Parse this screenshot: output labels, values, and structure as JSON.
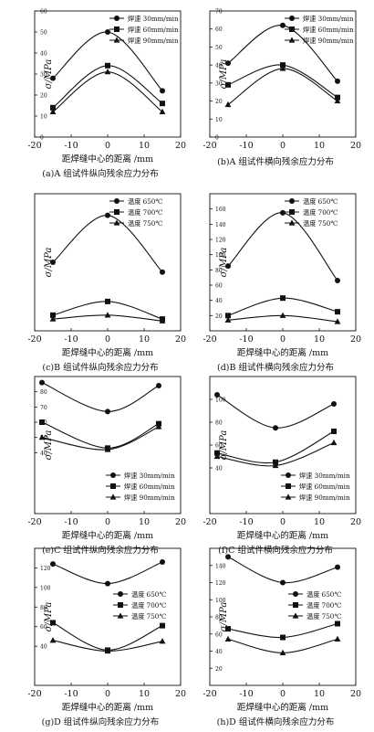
{
  "figure": {
    "panels_layout": "4 rows x 2 columns",
    "line_color": "#111111",
    "background": "#ffffff"
  },
  "chart_data": [
    {
      "id": "a",
      "type": "line",
      "caption": "(a)A 组试件纵向残余应力分布",
      "xlabel": "距焊缝中心的距离 /mm",
      "ylabel": "σ/MPa",
      "xlim": [
        -20,
        20
      ],
      "xticks": [
        -20,
        -10,
        0,
        10,
        20
      ],
      "ylim": [
        0,
        60
      ],
      "yticks": [
        0,
        10,
        20,
        30,
        40,
        50,
        60
      ],
      "grid": false,
      "legend_position": "top-right",
      "x": [
        -15,
        0,
        15
      ],
      "series": [
        {
          "name": "焊速 30mm/min",
          "marker": "circle",
          "values": [
            28,
            50,
            22
          ]
        },
        {
          "name": "焊速 60mm/min",
          "marker": "square",
          "values": [
            14,
            34,
            16
          ]
        },
        {
          "name": "焊速 90mm/min",
          "marker": "triangle",
          "values": [
            12,
            31,
            12
          ]
        }
      ]
    },
    {
      "id": "b",
      "type": "line",
      "caption": "(b)A 组试件横向残余应力分布",
      "xlabel": "",
      "ylabel": "σ/MPa",
      "xlim": [
        -20,
        20
      ],
      "xticks": [
        -20,
        -10,
        0,
        10,
        20
      ],
      "ylim": [
        0,
        70
      ],
      "yticks": [
        0,
        10,
        20,
        30,
        40,
        50,
        60,
        70
      ],
      "grid": false,
      "legend_position": "top-right",
      "x": [
        -15,
        0,
        15
      ],
      "series": [
        {
          "name": "焊速 30mm/min",
          "marker": "circle",
          "values": [
            41,
            62,
            31
          ]
        },
        {
          "name": "焊速 60mm/min",
          "marker": "square",
          "values": [
            29,
            40,
            22
          ]
        },
        {
          "name": "焊速 90mm/min",
          "marker": "triangle",
          "values": [
            18,
            38,
            20
          ]
        }
      ]
    },
    {
      "id": "c",
      "type": "line",
      "caption": "(c)B 组试件纵向残余应力分布",
      "xlabel": "距焊缝中心的距离 /mm",
      "ylabel": "σ/MPa",
      "xlim": [
        -20,
        20
      ],
      "xticks": [
        -20,
        -10,
        0,
        10,
        20
      ],
      "ylim": [
        0,
        140
      ],
      "yticks": [],
      "grid": false,
      "legend_position": "top-right",
      "x": [
        -15,
        0,
        15
      ],
      "series": [
        {
          "name": "温度 650℃",
          "marker": "circle",
          "values": [
            70,
            118,
            60
          ]
        },
        {
          "name": "温度 700℃",
          "marker": "square",
          "values": [
            16,
            30,
            12
          ]
        },
        {
          "name": "温度 750℃",
          "marker": "triangle",
          "values": [
            12,
            16,
            10
          ]
        }
      ]
    },
    {
      "id": "d",
      "type": "line",
      "caption": "(d)B 组试件横向残余应力分布",
      "xlabel": "距焊缝中心的距离 /mm",
      "ylabel": "σ/MPa",
      "xlim": [
        -20,
        20
      ],
      "xticks": [
        -20,
        -10,
        0,
        10,
        20
      ],
      "ylim": [
        0,
        180
      ],
      "yticks": [
        20,
        40,
        60,
        80,
        100,
        120,
        140,
        160
      ],
      "grid": false,
      "legend_position": "top-right",
      "x": [
        -15,
        0,
        15
      ],
      "series": [
        {
          "name": "温度 650℃",
          "marker": "circle",
          "values": [
            85,
            155,
            66
          ]
        },
        {
          "name": "温度 700℃",
          "marker": "square",
          "values": [
            20,
            43,
            25
          ]
        },
        {
          "name": "温度 750℃",
          "marker": "triangle",
          "values": [
            14,
            20,
            12
          ]
        }
      ]
    },
    {
      "id": "e",
      "type": "line",
      "caption": "(e)C 组试件纵向残余应力分布",
      "xlabel": "距焊缝中心的距离 /mm",
      "ylabel": "σ/MPa",
      "xlim": [
        -20,
        20
      ],
      "xticks": [
        -20,
        -10,
        0,
        10,
        20
      ],
      "ylim": [
        0,
        90
      ],
      "yticks": [
        40,
        50,
        60,
        70,
        80
      ],
      "grid": false,
      "legend_position": "bottom-right",
      "x": [
        -18,
        0,
        14
      ],
      "series": [
        {
          "name": "焊速 30mm/min",
          "marker": "circle",
          "values": [
            86,
            67,
            84
          ]
        },
        {
          "name": "焊速 60mm/min",
          "marker": "square",
          "values": [
            60,
            43,
            59
          ]
        },
        {
          "name": "焊速 90mm/min",
          "marker": "triangle",
          "values": [
            50,
            42,
            57
          ]
        }
      ]
    },
    {
      "id": "f",
      "type": "line",
      "caption": "(f)C 组试件横向残余应力分布",
      "xlabel": "距焊缝中心的距离 /mm",
      "ylabel": "σ/MPa",
      "xlim": [
        -20,
        20
      ],
      "xticks": [
        -20,
        -10,
        0,
        10,
        20
      ],
      "ylim": [
        0,
        120
      ],
      "yticks": [
        40,
        60,
        80,
        100
      ],
      "grid": false,
      "legend_position": "bottom-right",
      "x": [
        -18,
        -2,
        14
      ],
      "series": [
        {
          "name": "焊速 30mm/min",
          "marker": "circle",
          "values": [
            104,
            75,
            96
          ]
        },
        {
          "name": "焊速 60mm/min",
          "marker": "square",
          "values": [
            53,
            45,
            72
          ]
        },
        {
          "name": "焊速 90mm/min",
          "marker": "triangle",
          "values": [
            50,
            42,
            62
          ]
        }
      ]
    },
    {
      "id": "g",
      "type": "line",
      "caption": "(g)D 组试件纵向残余应力分布",
      "xlabel": "距焊缝中心的距离 /mm",
      "ylabel": "σ/MPa",
      "xlim": [
        -20,
        20
      ],
      "xticks": [
        -20,
        -10,
        0,
        10,
        20
      ],
      "ylim": [
        0,
        140
      ],
      "yticks": [
        40,
        60,
        80,
        100,
        120
      ],
      "grid": false,
      "legend_position": "right",
      "x": [
        -15,
        0,
        15
      ],
      "series": [
        {
          "name": "温度 650℃",
          "marker": "circle",
          "values": [
            124,
            104,
            126
          ]
        },
        {
          "name": "温度 700℃",
          "marker": "square",
          "values": [
            64,
            36,
            61
          ]
        },
        {
          "name": "温度 750℃",
          "marker": "triangle",
          "values": [
            46,
            35,
            45
          ]
        }
      ]
    },
    {
      "id": "h",
      "type": "line",
      "caption": "(h)D 组试件横向残余应力分布",
      "xlabel": "距焊缝中心的距离 /mm",
      "ylabel": "σ/MPa",
      "xlim": [
        -20,
        20
      ],
      "xticks": [
        -20,
        -10,
        0,
        10,
        20
      ],
      "ylim": [
        0,
        160
      ],
      "yticks": [
        20,
        40,
        60,
        80,
        100,
        120,
        140
      ],
      "grid": false,
      "legend_position": "right",
      "x": [
        -15,
        0,
        15
      ],
      "series": [
        {
          "name": "温度 650℃",
          "marker": "circle",
          "values": [
            150,
            120,
            138
          ]
        },
        {
          "name": "温度 700℃",
          "marker": "square",
          "values": [
            66,
            56,
            72
          ]
        },
        {
          "name": "温度 750℃",
          "marker": "triangle",
          "values": [
            54,
            38,
            54
          ]
        }
      ]
    }
  ]
}
